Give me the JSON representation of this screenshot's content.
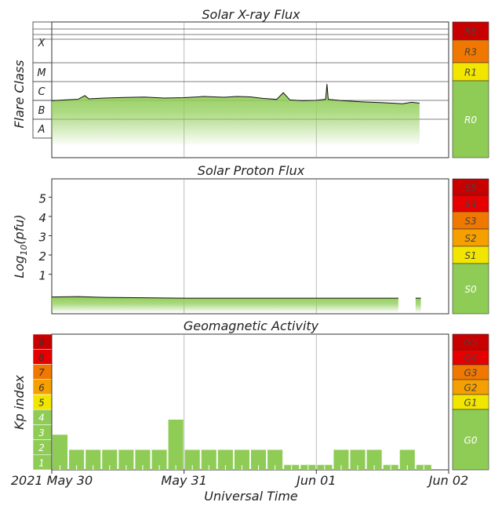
{
  "colors": {
    "green": "#8fcc55",
    "yellow": "#f2e600",
    "orange": "#f5a000",
    "dark_orange": "#f07800",
    "red": "#e60000",
    "dark_red": "#c80000"
  },
  "chart_data": [
    {
      "id": "xray",
      "type": "area",
      "title": "Solar X-ray Flux",
      "ylabel": "Flare Class",
      "scale": "log",
      "ylim": [
        -9.3,
        -2.2
      ],
      "class_labels": [
        {
          "label": "X",
          "log_flux": -3.5
        },
        {
          "label": "M",
          "log_flux": -4.5
        },
        {
          "label": "C",
          "log_flux": -5.5
        },
        {
          "label": "B",
          "log_flux": -6.5
        },
        {
          "label": "A",
          "log_flux": -7.5
        }
      ],
      "x_days": [
        0,
        2.78
      ],
      "level": [
        [
          0.0,
          -6.32
        ],
        [
          0.1,
          -6.28
        ],
        [
          0.2,
          -6.24
        ],
        [
          0.25,
          -6.05
        ],
        [
          0.28,
          -6.22
        ],
        [
          0.4,
          -6.18
        ],
        [
          0.55,
          -6.15
        ],
        [
          0.7,
          -6.13
        ],
        [
          0.85,
          -6.18
        ],
        [
          1.0,
          -6.16
        ],
        [
          1.15,
          -6.1
        ],
        [
          1.3,
          -6.14
        ],
        [
          1.4,
          -6.1
        ],
        [
          1.5,
          -6.12
        ],
        [
          1.6,
          -6.2
        ],
        [
          1.7,
          -6.25
        ],
        [
          1.75,
          -5.9
        ],
        [
          1.8,
          -6.28
        ],
        [
          1.9,
          -6.32
        ],
        [
          2.0,
          -6.3
        ],
        [
          2.07,
          -6.25
        ],
        [
          2.08,
          -5.45
        ],
        [
          2.09,
          -6.25
        ],
        [
          2.2,
          -6.32
        ],
        [
          2.35,
          -6.38
        ],
        [
          2.5,
          -6.42
        ],
        [
          2.65,
          -6.48
        ],
        [
          2.72,
          -6.4
        ],
        [
          2.78,
          -6.45
        ]
      ],
      "scale_labels": [
        {
          "label": "R5",
          "color": "dark_red"
        },
        {
          "label": "R3",
          "color": "dark_orange"
        },
        {
          "label": "R1",
          "color": "yellow"
        },
        {
          "label": "R0",
          "color": "green"
        }
      ]
    },
    {
      "id": "proton",
      "type": "area",
      "title": "Solar Proton Flux",
      "ylabel_pre": "Log",
      "ylabel_sub": "10",
      "ylabel_post": "(pfu)",
      "yticks": [
        1,
        2,
        3,
        4,
        5
      ],
      "ylim": [
        -1.05,
        5.95
      ],
      "x_days": [
        0,
        2.78
      ],
      "level": [
        [
          0.0,
          -0.18
        ],
        [
          0.2,
          -0.16
        ],
        [
          0.4,
          -0.2
        ],
        [
          0.7,
          -0.22
        ],
        [
          1.0,
          -0.24
        ],
        [
          1.3,
          -0.24
        ],
        [
          1.6,
          -0.24
        ],
        [
          1.9,
          -0.24
        ],
        [
          2.2,
          -0.24
        ],
        [
          2.62,
          -0.24
        ]
      ],
      "gaps": [
        [
          2.62,
          2.75
        ]
      ],
      "scale_labels": [
        {
          "label": "S5",
          "color": "dark_red"
        },
        {
          "label": "S4",
          "color": "red"
        },
        {
          "label": "S3",
          "color": "dark_orange"
        },
        {
          "label": "S2",
          "color": "orange"
        },
        {
          "label": "S1",
          "color": "yellow"
        },
        {
          "label": "S0",
          "color": "green"
        }
      ]
    },
    {
      "id": "kp",
      "type": "bar",
      "title": "Geomagnetic Activity",
      "ylabel": "Kp index",
      "ylim": [
        0,
        9
      ],
      "kp_ticks": [
        {
          "label": "1",
          "color": "green"
        },
        {
          "label": "2",
          "color": "green"
        },
        {
          "label": "3",
          "color": "green"
        },
        {
          "label": "4",
          "color": "green"
        },
        {
          "label": "5",
          "color": "yellow"
        },
        {
          "label": "6",
          "color": "orange"
        },
        {
          "label": "7",
          "color": "dark_orange"
        },
        {
          "label": "8",
          "color": "red"
        },
        {
          "label": "9",
          "color": "dark_red"
        }
      ],
      "bars_interval_hours": 3,
      "values": [
        2.33,
        1.33,
        1.33,
        1.33,
        1.33,
        1.33,
        1.33,
        3.33,
        1.33,
        1.33,
        1.33,
        1.33,
        1.33,
        1.33,
        0.33,
        0.33,
        0.33,
        1.33,
        1.33,
        1.33,
        0.33,
        1.33,
        0.33
      ],
      "scale_labels": [
        {
          "label": "G5",
          "color": "dark_red"
        },
        {
          "label": "G4",
          "color": "red"
        },
        {
          "label": "G3",
          "color": "dark_orange"
        },
        {
          "label": "G2",
          "color": "orange"
        },
        {
          "label": "G1",
          "color": "yellow"
        },
        {
          "label": "G0",
          "color": "green"
        }
      ]
    }
  ],
  "x_axis": {
    "xlabel": "Universal Time",
    "ticks": [
      "2021 May 30",
      "May 31",
      "Jun 01",
      "Jun 02"
    ],
    "domain_days": [
      0,
      3
    ]
  }
}
